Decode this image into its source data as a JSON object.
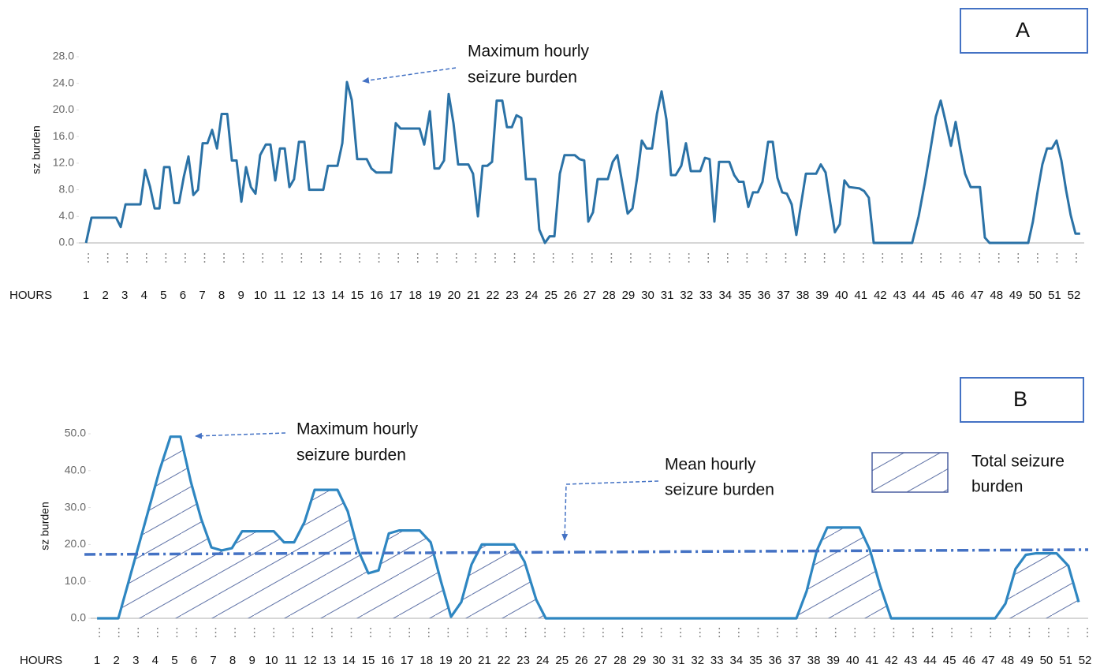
{
  "chart_data": [
    {
      "type": "line",
      "panel_label": "A",
      "ylabel": "sz burden",
      "xlabel": "HOURS",
      "annotation": [
        "Maximum hourly",
        "seizure burden"
      ],
      "color": "#2b72a6",
      "x": [
        1.0,
        1.28,
        1.77,
        2.55,
        2.79,
        3.04,
        3.81,
        4.05,
        4.3,
        4.54,
        4.79,
        5.03,
        5.31,
        5.56,
        5.8,
        6.05,
        6.29,
        6.54,
        6.78,
        7.02,
        7.27,
        7.51,
        7.76,
        8.0,
        8.29,
        8.53,
        8.77,
        9.02,
        9.26,
        9.51,
        9.75,
        9.99,
        10.28,
        10.52,
        10.77,
        11.01,
        11.26,
        11.5,
        11.74,
        11.99,
        12.27,
        12.52,
        13.25,
        13.49,
        13.98,
        14.23,
        14.47,
        14.72,
        15.0,
        15.49,
        15.73,
        15.98,
        16.75,
        16.99,
        17.24,
        18.22,
        18.46,
        18.75,
        18.99,
        19.23,
        19.48,
        19.72,
        19.97,
        20.21,
        20.74,
        20.98,
        21.23,
        21.47,
        21.72,
        21.96,
        22.2,
        22.49,
        22.73,
        22.98,
        23.22,
        23.47,
        23.71,
        24.2,
        24.4,
        24.69,
        24.93,
        25.18,
        25.46,
        25.7,
        26.23,
        26.48,
        26.72,
        26.93,
        27.17,
        27.41,
        27.94,
        28.19,
        28.43,
        28.96,
        29.21,
        29.45,
        29.69,
        29.94,
        30.22,
        30.47,
        30.71,
        30.96,
        31.2,
        31.44,
        31.73,
        31.97,
        32.22,
        32.71,
        32.95,
        33.19,
        33.44,
        33.68,
        34.21,
        34.46,
        34.7,
        34.94,
        35.19,
        35.43,
        35.68,
        35.92,
        36.21,
        36.45,
        36.69,
        36.94,
        37.18,
        37.43,
        37.67,
        37.92,
        38.16,
        38.69,
        38.93,
        39.18,
        39.42,
        39.66,
        39.91,
        40.15,
        40.4,
        40.93,
        41.17,
        41.41,
        41.66,
        43.65,
        43.98,
        44.3,
        44.59,
        44.87,
        45.12,
        45.36,
        45.65,
        45.89,
        46.14,
        46.38,
        46.67,
        47.15,
        47.4,
        47.64,
        49.64,
        49.88,
        50.13,
        50.37,
        50.61,
        50.86,
        51.1,
        51.35,
        51.59,
        51.83,
        52.08,
        52.32
      ],
      "values": [
        0,
        3.8,
        3.8,
        3.8,
        2.4,
        5.8,
        5.8,
        11,
        8.5,
        5.2,
        5.2,
        11.4,
        11.4,
        6,
        6,
        10,
        13,
        7.2,
        8,
        15,
        15,
        17,
        14.2,
        19.4,
        19.4,
        12.4,
        12.4,
        6.2,
        11.4,
        8.4,
        7.4,
        13.2,
        14.8,
        14.8,
        9.4,
        14.2,
        14.2,
        8.4,
        9.6,
        15.2,
        15.2,
        8,
        8,
        11.6,
        11.6,
        15,
        24.2,
        21.5,
        12.6,
        12.6,
        11.2,
        10.6,
        10.6,
        18,
        17.2,
        17.2,
        14.8,
        19.8,
        11.2,
        11.2,
        12.4,
        22.4,
        18,
        11.8,
        11.8,
        10.4,
        4,
        11.6,
        11.6,
        12.2,
        21.4,
        21.4,
        17.4,
        17.4,
        19.2,
        18.8,
        9.6,
        9.6,
        2,
        0,
        1,
        1,
        10.4,
        13.2,
        13.2,
        12.6,
        12.4,
        3.2,
        4.6,
        9.6,
        9.6,
        12.2,
        13.2,
        4.4,
        5.2,
        9.8,
        15.4,
        14.2,
        14.2,
        19.4,
        22.8,
        18.6,
        10.2,
        10.2,
        11.6,
        15,
        10.8,
        10.8,
        12.8,
        12.6,
        3.2,
        12.2,
        12.2,
        10.2,
        9.2,
        9.2,
        5.4,
        7.6,
        7.6,
        9.2,
        15.2,
        15.2,
        9.8,
        7.6,
        7.4,
        5.8,
        1.2,
        6,
        10.4,
        10.4,
        11.8,
        10.6,
        6,
        1.6,
        2.8,
        9.4,
        8.4,
        8.2,
        7.8,
        6.8,
        0,
        0,
        4,
        9,
        14,
        19,
        21.4,
        18.4,
        14.6,
        18.2,
        14,
        10.4,
        8.4,
        8.4,
        0.8,
        0,
        0,
        3.2,
        7.8,
        11.8,
        14.2,
        14.2,
        15.4,
        12.4,
        8,
        4.2,
        1.4,
        1.4
      ],
      "xlim": [
        0.63,
        52.53
      ],
      "xticks": [
        1,
        2,
        3,
        4,
        5,
        6,
        7,
        8,
        9,
        10,
        11,
        12,
        13,
        14,
        15,
        16,
        17,
        18,
        19,
        20,
        21,
        22,
        23,
        24,
        25,
        26,
        27,
        28,
        29,
        30,
        31,
        32,
        33,
        34,
        35,
        36,
        37,
        38,
        39,
        40,
        41,
        42,
        43,
        44,
        45,
        46,
        47,
        48,
        49,
        50,
        51,
        52
      ],
      "ylim": [
        0,
        28
      ],
      "yticks": [
        {
          "value": 0,
          "label": "0.0"
        },
        {
          "value": 4,
          "label": "4.0"
        },
        {
          "value": 8,
          "label": "8.0"
        },
        {
          "value": 12,
          "label": "12.0"
        },
        {
          "value": 16,
          "label": "16.0"
        },
        {
          "value": 20,
          "label": "20.0"
        },
        {
          "value": 24,
          "label": "24.0"
        },
        {
          "value": 28,
          "label": "28.0"
        }
      ]
    },
    {
      "type": "area",
      "panel_label": "B",
      "ylabel": "sz burden",
      "xlabel": "HOURS",
      "annotation": [
        "Maximum hourly",
        "seizure burden"
      ],
      "legend": "upper right",
      "series": [
        {
          "name": [
            "Total seizure",
            "burden"
          ],
          "color": "#2e86c1",
          "hatch_color": "#6275a8",
          "x": [
            1.0,
            2.1,
            2.63,
            3.16,
            3.69,
            4.22,
            4.79,
            5.31,
            5.84,
            6.37,
            6.9,
            7.43,
            7.96,
            8.49,
            9.02,
            9.55,
            10.12,
            10.65,
            11.17,
            11.7,
            12.23,
            12.76,
            13.41,
            13.94,
            14.47,
            15.0,
            15.53,
            16.06,
            16.59,
            17.12,
            17.65,
            18.22,
            18.75,
            19.27,
            19.8,
            20.33,
            20.86,
            21.39,
            21.92,
            22.53,
            23.06,
            23.67,
            24.16,
            37.1,
            37.63,
            38.16,
            38.69,
            39.75,
            40.36,
            40.89,
            41.41,
            41.99,
            47.36,
            47.89,
            48.41,
            48.94,
            49.47,
            50.53,
            51.14,
            51.67
          ],
          "values": [
            0,
            0,
            10,
            20,
            30,
            40,
            49.2,
            49.2,
            37,
            27,
            19.2,
            18.4,
            19,
            23.6,
            23.6,
            23.6,
            23.6,
            20.6,
            20.6,
            26,
            34.8,
            34.8,
            34.8,
            29,
            18.6,
            12.2,
            13,
            23,
            23.8,
            23.8,
            23.8,
            20.6,
            10,
            0.4,
            4.4,
            14.6,
            20,
            20,
            20,
            20,
            15.4,
            5,
            0,
            0,
            7.4,
            18.4,
            24.6,
            24.6,
            24.6,
            18.6,
            9,
            0,
            0,
            4,
            13.4,
            17.2,
            17.6,
            17.6,
            14.2,
            4.4
          ]
        }
      ],
      "mean_line": {
        "label": [
          "Mean hourly",
          "seizure burden"
        ],
        "color": "#4472c4",
        "x": [
          0.35,
          52.16
        ],
        "values": [
          17.3,
          18.6
        ]
      },
      "xlim": [
        0.67,
        52.16
      ],
      "xticks": [
        1,
        2,
        3,
        4,
        5,
        6,
        7,
        8,
        9,
        10,
        11,
        12,
        13,
        14,
        15,
        16,
        17,
        18,
        19,
        20,
        21,
        22,
        23,
        24,
        25,
        26,
        27,
        28,
        29,
        30,
        31,
        32,
        33,
        34,
        35,
        36,
        37,
        38,
        39,
        40,
        41,
        42,
        43,
        44,
        45,
        46,
        47,
        48,
        49,
        50,
        51,
        52
      ],
      "ylim": [
        0,
        50
      ],
      "yticks": [
        {
          "value": 0,
          "label": "0.0"
        },
        {
          "value": 10,
          "label": "10.0"
        },
        {
          "value": 20,
          "label": "20.0"
        },
        {
          "value": 30,
          "label": "30.0"
        },
        {
          "value": 40,
          "label": "40.0"
        },
        {
          "value": 50,
          "label": "50.0"
        }
      ]
    }
  ]
}
